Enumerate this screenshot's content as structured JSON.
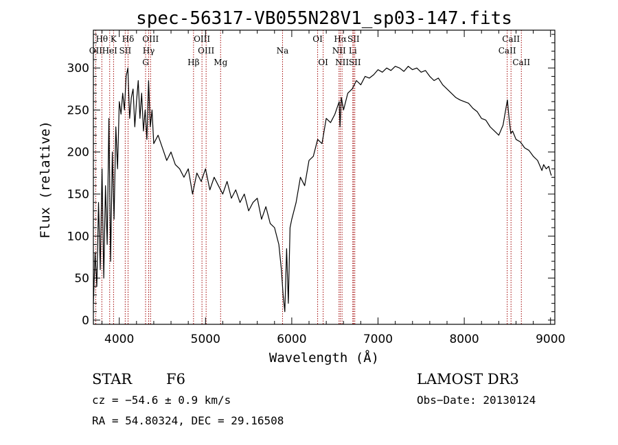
{
  "chart_data": {
    "type": "line",
    "title": "spec-56317-VB055N28V1_sp03-147.fits",
    "xlabel": "Wavelength (Å)",
    "ylabel": "Flux (relative)",
    "xlim": [
      3700,
      9050
    ],
    "ylim": [
      -5,
      345
    ],
    "xticks": [
      4000,
      5000,
      6000,
      7000,
      8000,
      9000
    ],
    "yticks": [
      0,
      50,
      100,
      150,
      200,
      250,
      300
    ],
    "line_color": "#000000",
    "marker_color": "#a00000",
    "spectrum": {
      "x": [
        3700,
        3720,
        3740,
        3760,
        3780,
        3800,
        3820,
        3840,
        3860,
        3880,
        3900,
        3920,
        3940,
        3960,
        3980,
        4000,
        4020,
        4040,
        4060,
        4080,
        4100,
        4120,
        4140,
        4160,
        4180,
        4200,
        4220,
        4240,
        4260,
        4280,
        4300,
        4320,
        4340,
        4360,
        4380,
        4400,
        4450,
        4500,
        4550,
        4600,
        4650,
        4700,
        4750,
        4800,
        4850,
        4900,
        4950,
        5000,
        5050,
        5100,
        5150,
        5200,
        5250,
        5300,
        5350,
        5400,
        5450,
        5500,
        5550,
        5600,
        5650,
        5700,
        5750,
        5800,
        5850,
        5880,
        5900,
        5920,
        5940,
        5960,
        5980,
        6000,
        6050,
        6100,
        6150,
        6200,
        6250,
        6300,
        6350,
        6400,
        6450,
        6500,
        6550,
        6560,
        6575,
        6600,
        6650,
        6700,
        6750,
        6800,
        6850,
        6900,
        6950,
        7000,
        7050,
        7100,
        7150,
        7200,
        7250,
        7300,
        7350,
        7400,
        7450,
        7500,
        7550,
        7600,
        7650,
        7700,
        7750,
        7800,
        7850,
        7900,
        7950,
        8000,
        8050,
        8100,
        8150,
        8200,
        8250,
        8300,
        8350,
        8400,
        8450,
        8500,
        8520,
        8540,
        8560,
        8600,
        8650,
        8700,
        8750,
        8800,
        8850,
        8900,
        8920,
        8950,
        8980,
        9000,
        9010
      ],
      "y": [
        20,
        80,
        40,
        140,
        60,
        180,
        50,
        160,
        90,
        240,
        70,
        200,
        120,
        230,
        180,
        260,
        245,
        270,
        250,
        290,
        300,
        240,
        265,
        275,
        230,
        260,
        285,
        240,
        270,
        225,
        250,
        215,
        285,
        230,
        250,
        210,
        220,
        205,
        190,
        200,
        185,
        180,
        170,
        180,
        150,
        175,
        165,
        180,
        155,
        170,
        160,
        150,
        165,
        145,
        155,
        140,
        150,
        130,
        140,
        145,
        120,
        135,
        115,
        110,
        90,
        60,
        30,
        10,
        85,
        20,
        110,
        120,
        140,
        170,
        160,
        190,
        195,
        215,
        210,
        240,
        235,
        245,
        260,
        230,
        265,
        250,
        270,
        275,
        285,
        280,
        290,
        288,
        292,
        298,
        295,
        300,
        297,
        302,
        300,
        296,
        302,
        298,
        300,
        295,
        297,
        290,
        285,
        288,
        280,
        275,
        270,
        265,
        262,
        260,
        258,
        252,
        248,
        240,
        238,
        230,
        225,
        220,
        232,
        262,
        240,
        222,
        225,
        215,
        212,
        205,
        202,
        195,
        190,
        178,
        185,
        180,
        183,
        175,
        172
      ]
    },
    "lines": [
      {
        "name": "Hθ",
        "wave": 3798,
        "pos": "top"
      },
      {
        "name": "K",
        "wave": 3934,
        "pos": "top"
      },
      {
        "name": "Hδ",
        "wave": 4102,
        "pos": "top"
      },
      {
        "name": "OII",
        "wave": 3727,
        "pos": "mid"
      },
      {
        "name": "HeI",
        "wave": 3889,
        "pos": "mid"
      },
      {
        "name": "SII",
        "wave": 4069,
        "pos": "mid"
      },
      {
        "name": "OIII",
        "wave": 4363,
        "pos": "top"
      },
      {
        "name": "Hγ",
        "wave": 4341,
        "pos": "mid"
      },
      {
        "name": "G",
        "wave": 4305,
        "pos": "low"
      },
      {
        "name": "OIII",
        "wave": 4959,
        "pos": "top"
      },
      {
        "name": "OIII",
        "wave": 5007,
        "pos": "mid"
      },
      {
        "name": "Hβ",
        "wave": 4861,
        "pos": "low"
      },
      {
        "name": "Mg",
        "wave": 5175,
        "pos": "low"
      },
      {
        "name": "Na",
        "wave": 5893,
        "pos": "mid"
      },
      {
        "name": "OI",
        "wave": 6300,
        "pos": "top"
      },
      {
        "name": "OI",
        "wave": 6364,
        "pos": "low"
      },
      {
        "name": "Hα",
        "wave": 6563,
        "pos": "top"
      },
      {
        "name": "SII",
        "wave": 6716,
        "pos": "top"
      },
      {
        "name": "NII",
        "wave": 6548,
        "pos": "mid"
      },
      {
        "name": "Li",
        "wave": 6708,
        "pos": "mid"
      },
      {
        "name": "NII",
        "wave": 6583,
        "pos": "low"
      },
      {
        "name": "SII",
        "wave": 6731,
        "pos": "low"
      },
      {
        "name": "CaII",
        "wave": 8542,
        "pos": "top"
      },
      {
        "name": "CaII",
        "wave": 8498,
        "pos": "mid"
      },
      {
        "name": "CaII",
        "wave": 8662,
        "pos": "low"
      }
    ]
  },
  "info": {
    "object_type": "STAR",
    "subclass": "F6",
    "survey": "LAMOST DR3",
    "cz": "cz = −54.6 ± 0.9 km/s",
    "obs_date": "Obs−Date: 20130124",
    "coords": "RA =  54.80324, DEC =  29.16508"
  }
}
